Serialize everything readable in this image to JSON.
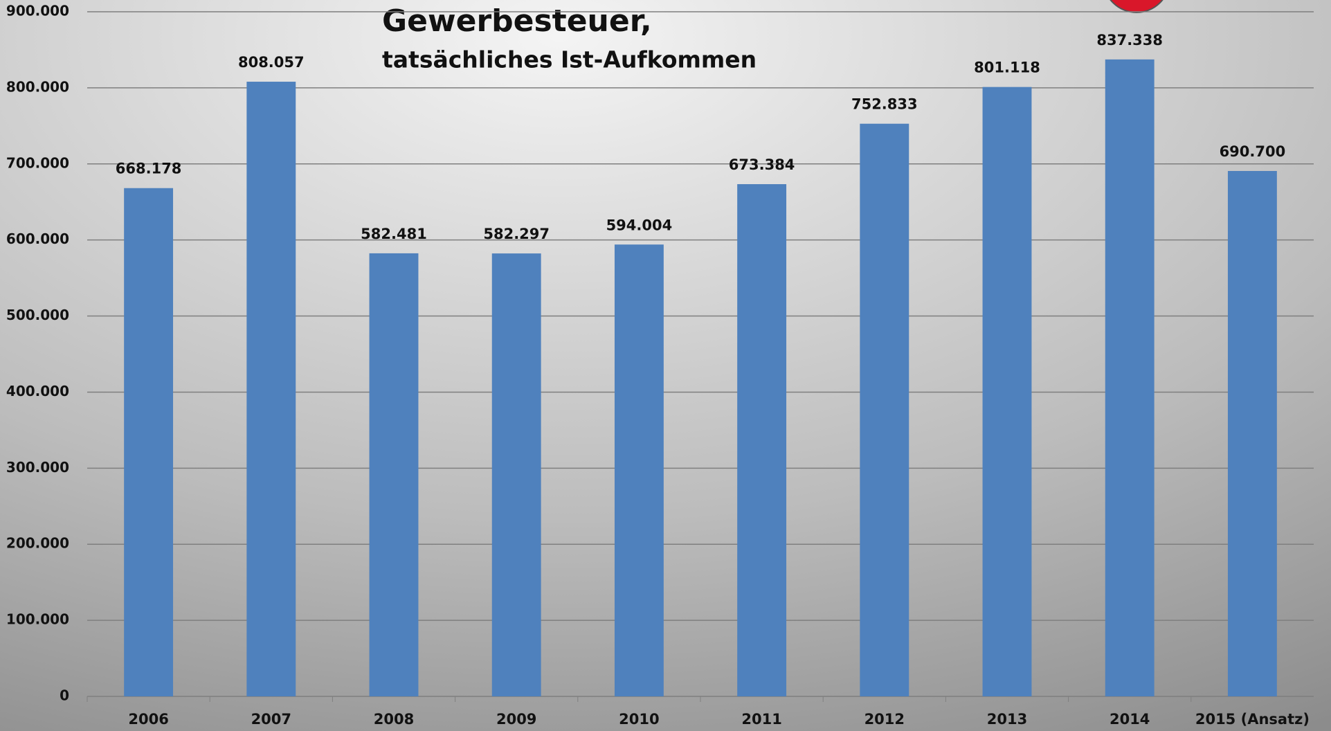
{
  "chart_data": {
    "type": "bar",
    "title": "Gewerbesteuer,",
    "subtitle": "tatsächliches Ist-Aufkommen",
    "categories": [
      "2006",
      "2007",
      "2008",
      "2009",
      "2010",
      "2011",
      "2012",
      "2013",
      "2014",
      "2015 (Ansatz)"
    ],
    "values": [
      668178,
      808057,
      582481,
      582297,
      594004,
      673384,
      752833,
      801118,
      837338,
      690700
    ],
    "value_labels": [
      "668.178",
      "808.057",
      "582.481",
      "582.297",
      "594.004",
      "673.384",
      "752.833",
      "801.118",
      "837.338",
      "690.700"
    ],
    "color": "#4f81bd",
    "ylim": [
      0,
      900000
    ],
    "yticks": [
      0,
      {
        "value": 100000,
        "label": "100.000"
      },
      {
        "value": 200000,
        "label": "200.000"
      },
      {
        "value": 300000,
        "label": "300.000"
      },
      {
        "value": 400000,
        "label": "400.000"
      },
      {
        "value": 500000,
        "label": "500.000"
      },
      {
        "value": 600000,
        "label": "600.000"
      },
      {
        "value": 700000,
        "label": "700.000"
      },
      {
        "value": 800000,
        "label": "800.000"
      },
      {
        "value": 900000,
        "label": "900.000"
      }
    ],
    "grid": true
  }
}
